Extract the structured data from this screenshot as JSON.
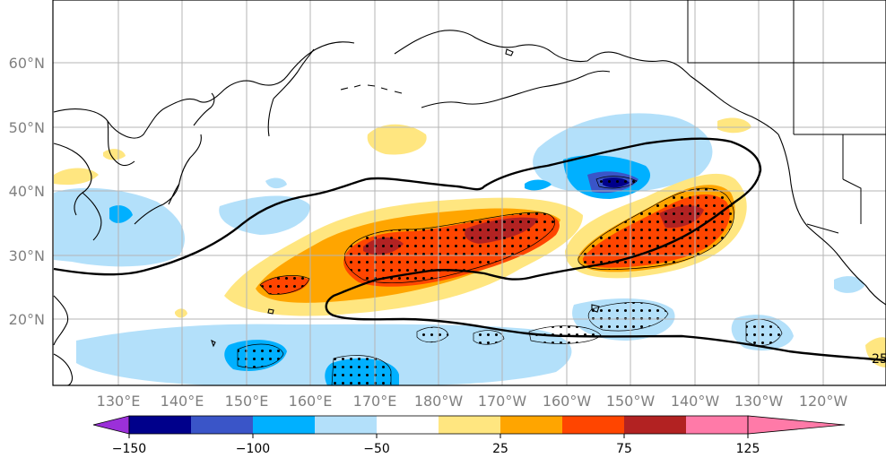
{
  "lat_labels": [
    "60°N",
    "50°N",
    "40°N",
    "30°N",
    "20°N"
  ],
  "lon_labels": [
    "130°E",
    "140°E",
    "150°E",
    "160°E",
    "170°E",
    "180°W",
    "170°W",
    "160°W",
    "150°W",
    "140°W",
    "130°W",
    "120°W"
  ],
  "contour_label": "25",
  "colorbar": {
    "tick_labels": [
      "−150",
      "−100",
      "−50",
      "25",
      "75",
      "125"
    ],
    "colors": [
      "#9b30d9",
      "#00008b",
      "#3a55c8",
      "#00b0ff",
      "#b3e0fa",
      "#ffffff",
      "#ffe680",
      "#ffa500",
      "#ff4500",
      "#b22222",
      "#ff7aa8"
    ]
  }
}
